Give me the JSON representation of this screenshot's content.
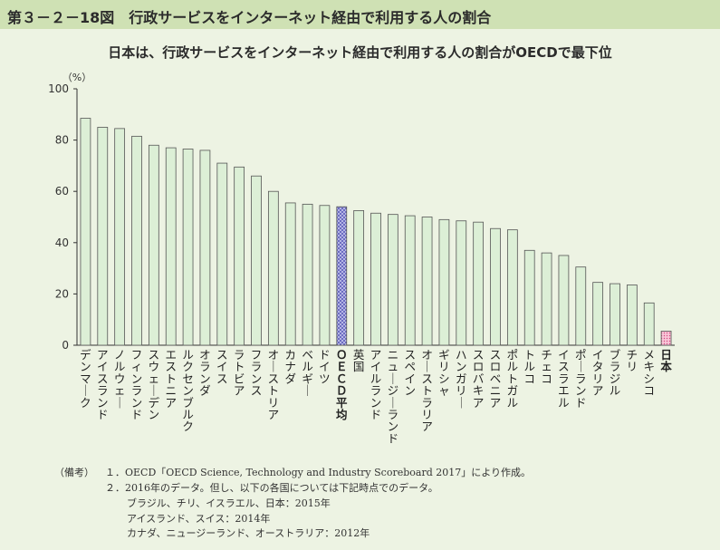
{
  "header": {
    "title": "第３－２－18図　行政サービスをインターネット経由で利用する人の割合"
  },
  "chart_data": {
    "type": "bar",
    "title": "日本は、行政サービスをインターネット経由で利用する人の割合がOECDで最下位",
    "ylabel": "（%）",
    "xlabel": "",
    "ylim": [
      0,
      100
    ],
    "yticks": [
      0,
      20,
      40,
      60,
      80,
      100
    ],
    "grid": false,
    "categories": [
      "デンマーク",
      "アイスランド",
      "ノルウェー",
      "フィンランド",
      "スウェーデン",
      "エストニア",
      "ルクセンブルク",
      "オランダ",
      "スイス",
      "ラトビア",
      "フランス",
      "オーストリア",
      "カナダ",
      "ベルギー",
      "ドイツ",
      "ＯＥＣＤ平均",
      "英国",
      "アイルランド",
      "ニュージーランド",
      "スペイン",
      "オーストラリア",
      "ギリシャ",
      "ハンガリー",
      "スロバキア",
      "スロベニア",
      "ポルトガル",
      "トルコ",
      "チェコ",
      "イスラエル",
      "ポーランド",
      "イタリア",
      "ブラジル",
      "チリ",
      "メキシコ",
      "日本"
    ],
    "values": [
      88.5,
      85,
      84.5,
      81.5,
      78,
      77,
      76.5,
      76,
      71,
      69.5,
      66,
      60,
      55.5,
      55,
      54.5,
      54,
      52.5,
      51.5,
      51,
      50.5,
      50,
      49,
      48.5,
      48,
      45.5,
      45,
      37,
      36,
      35,
      30.5,
      24.5,
      24,
      23.5,
      16.5,
      5.5
    ],
    "highlight": {
      "ＯＥＣＤ平均": "crosshatch",
      "日本": "dots"
    },
    "colors": {
      "bar_fill": "#dcefd6",
      "bar_stroke": "#555555",
      "oecd_fill": "#a9a9e0",
      "japan_fill": "#f4a6c2"
    }
  },
  "notes": {
    "label": "（備考）",
    "lines": [
      "１．OECD「OECD Science, Technology and Industry Scoreboard 2017」により作成。",
      "２．2016年のデータ。但し、以下の各国については下記時点でのデータ。",
      "ブラジル、チリ、イスラエル、日本：2015年",
      "アイスランド、スイス：2014年",
      "カナダ、ニュージーランド、オーストラリア：2012年"
    ]
  }
}
